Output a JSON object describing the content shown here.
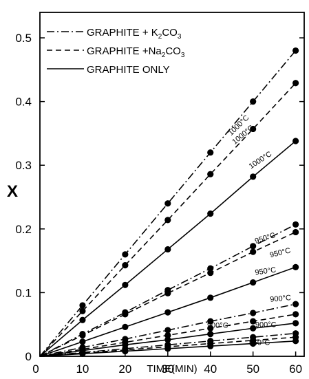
{
  "chart_data": {
    "type": "line",
    "xlabel": "TIME(MIN)",
    "ylabel": "X",
    "xlim": [
      0,
      62
    ],
    "ylim": [
      0,
      0.54
    ],
    "x_ticks": [
      0,
      10,
      20,
      30,
      40,
      50,
      60
    ],
    "x_tick_labels": [
      "0",
      "10",
      "20",
      "30",
      "40",
      "50",
      "60"
    ],
    "y_ticks": [
      0,
      0.1,
      0.2,
      0.3,
      0.4,
      0.5
    ],
    "y_tick_labels": [
      "0",
      "0.1",
      "0.2",
      "0.3",
      "0.4",
      "0.5"
    ],
    "grid": false,
    "legend_position": "top-left",
    "legend": [
      {
        "label_main": "GRAPHITE +  K",
        "sub": "2",
        "label_end": "CO",
        "sub2": "3",
        "style": "dashdot"
      },
      {
        "label_main": "GRAPHITE +Na",
        "sub": "2",
        "label_end": "CO",
        "sub2": "3",
        "style": "dashed"
      },
      {
        "label_main": "GRAPHITE ONLY",
        "sub": "",
        "label_end": "",
        "sub2": "",
        "style": "solid"
      }
    ],
    "x": [
      0,
      10,
      20,
      30,
      40,
      50,
      60
    ],
    "series": [
      {
        "style": "dashdot",
        "temp": "1000",
        "values": [
          0,
          0.08,
          0.16,
          0.24,
          0.32,
          0.4,
          0.48
        ]
      },
      {
        "style": "dashed",
        "temp": "1000",
        "values": [
          0,
          0.071,
          0.143,
          0.214,
          0.286,
          0.357,
          0.429
        ]
      },
      {
        "style": "solid",
        "temp": "1000",
        "values": [
          0,
          0.057,
          0.112,
          0.168,
          0.224,
          0.282,
          0.338
        ]
      },
      {
        "style": "dashdot",
        "temp": "950",
        "values": [
          0,
          0.035,
          0.069,
          0.104,
          0.138,
          0.173,
          0.207
        ]
      },
      {
        "style": "dashed",
        "temp": "950",
        "values": [
          0,
          0.033,
          0.066,
          0.099,
          0.131,
          0.164,
          0.195
        ]
      },
      {
        "style": "solid",
        "temp": "950",
        "values": [
          0,
          0.023,
          0.046,
          0.069,
          0.092,
          0.116,
          0.14
        ]
      },
      {
        "style": "dashdot",
        "temp": "900",
        "values": [
          0,
          0.014,
          0.027,
          0.041,
          0.055,
          0.068,
          0.082
        ]
      },
      {
        "style": "dashed",
        "temp": "900",
        "values": [
          0,
          0.011,
          0.022,
          0.033,
          0.044,
          0.055,
          0.066
        ]
      },
      {
        "style": "solid",
        "temp": "900",
        "values": [
          0,
          0.009,
          0.018,
          0.026,
          0.035,
          0.044,
          0.052
        ]
      },
      {
        "style": "dashdot",
        "temp": "850",
        "values": [
          0,
          0.006,
          0.012,
          0.018,
          0.024,
          0.03,
          0.036
        ]
      },
      {
        "style": "dashed",
        "temp": "850",
        "values": [
          0,
          0.005,
          0.01,
          0.015,
          0.02,
          0.025,
          0.03
        ]
      },
      {
        "style": "solid",
        "temp": "850",
        "values": [
          0,
          0.004,
          0.008,
          0.012,
          0.016,
          0.02,
          0.024
        ]
      }
    ],
    "annotations": [
      {
        "text": "1000°C",
        "x": 47,
        "y": 0.36,
        "angle": -44
      },
      {
        "text": "1000°C",
        "x": 48,
        "y": 0.345,
        "angle": -40
      },
      {
        "text": "1000°C",
        "x": 52,
        "y": 0.305,
        "angle": -33
      },
      {
        "text": "950°C",
        "x": 53,
        "y": 0.182,
        "angle": -18
      },
      {
        "text": "950°C",
        "x": 56.5,
        "y": 0.159,
        "angle": -14
      },
      {
        "text": "950°C",
        "x": 53,
        "y": 0.13,
        "angle": -8
      },
      {
        "text": "900°C",
        "x": 56.5,
        "y": 0.087,
        "angle": -5
      },
      {
        "text": "900°C-",
        "x": 42,
        "y": 0.045,
        "angle": 0
      },
      {
        "text": "900°C",
        "x": 53,
        "y": 0.046,
        "angle": 0
      },
      {
        "text": "850°C",
        "x": 51.5,
        "y": 0.018,
        "angle": 0
      }
    ]
  }
}
